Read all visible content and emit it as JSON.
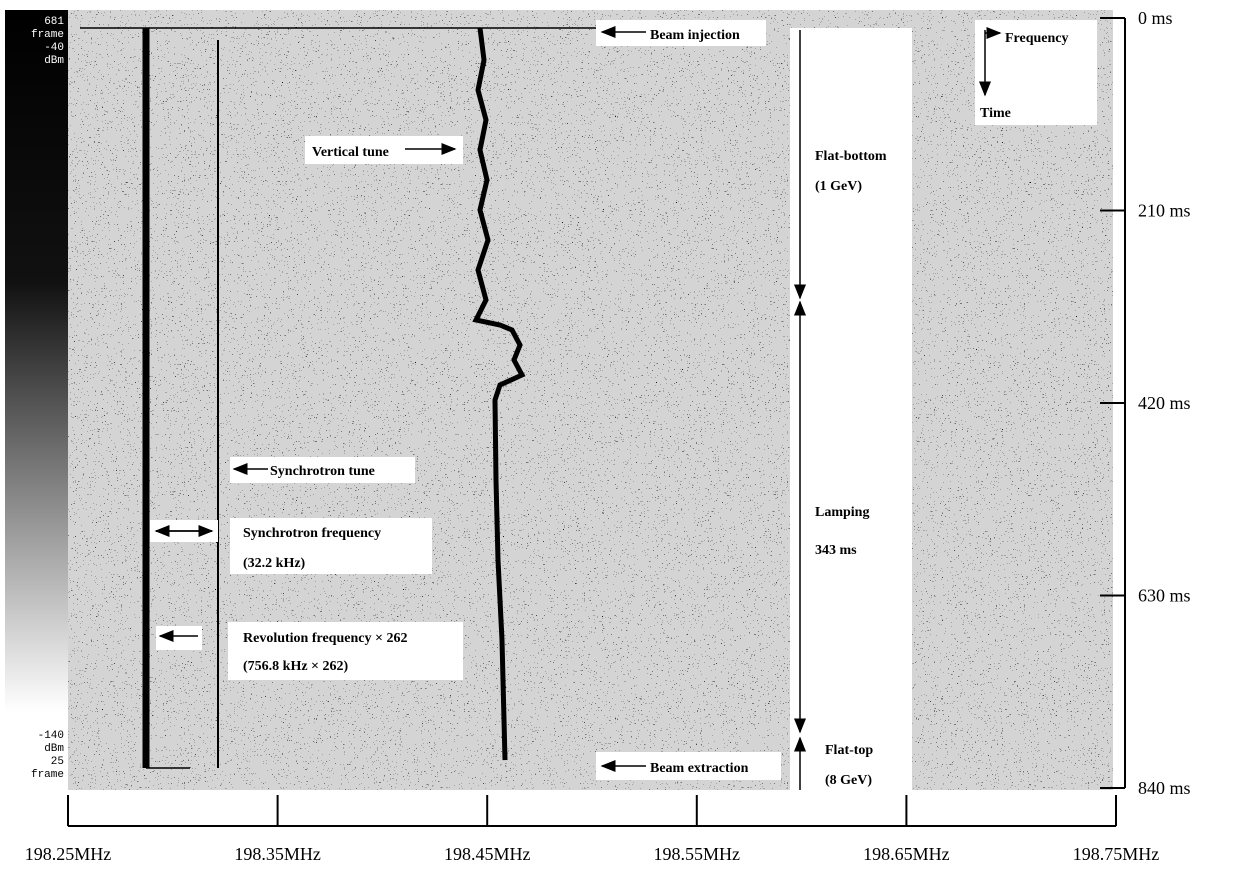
{
  "chart_data": {
    "type": "spectrogram",
    "xlim": [
      198.25,
      198.75
    ],
    "xticks": [
      {
        "value": 198.25,
        "label": "198.25MHz"
      },
      {
        "value": 198.35,
        "label": "198.35MHz"
      },
      {
        "value": 198.45,
        "label": "198.45MHz"
      },
      {
        "value": 198.55,
        "label": "198.55MHz"
      },
      {
        "value": 198.65,
        "label": "198.65MHz"
      },
      {
        "value": 198.75,
        "label": "198.75MHz"
      }
    ],
    "ylim": [
      0,
      840
    ],
    "yticks": [
      {
        "value": 0,
        "label": "0 ms"
      },
      {
        "value": 210,
        "label": "210 ms"
      },
      {
        "value": 420,
        "label": "420 ms"
      },
      {
        "value": 630,
        "label": "630 ms"
      },
      {
        "value": 840,
        "label": "840 ms"
      }
    ],
    "colorbar": {
      "top": [
        "681",
        "frame",
        "-40",
        "dBm"
      ],
      "bottom": [
        "-140",
        "dBm",
        "25",
        "frame"
      ]
    },
    "annotations": [
      [
        "Beam injection"
      ],
      [
        "Vertical tune"
      ],
      [
        "Synchrotron tune"
      ],
      [
        "Synchrotron frequency",
        "(32.2 kHz)"
      ],
      [
        "Revolution frequency × 262",
        "(756.8 kHz × 262)"
      ],
      [
        "Beam extraction"
      ],
      [
        "Flat-bottom",
        "(1 GeV)"
      ],
      [
        "Lamping",
        "343 ms"
      ],
      [
        "Flat-top",
        "(8 GeV)"
      ],
      [
        "Frequency",
        "Time"
      ]
    ]
  }
}
